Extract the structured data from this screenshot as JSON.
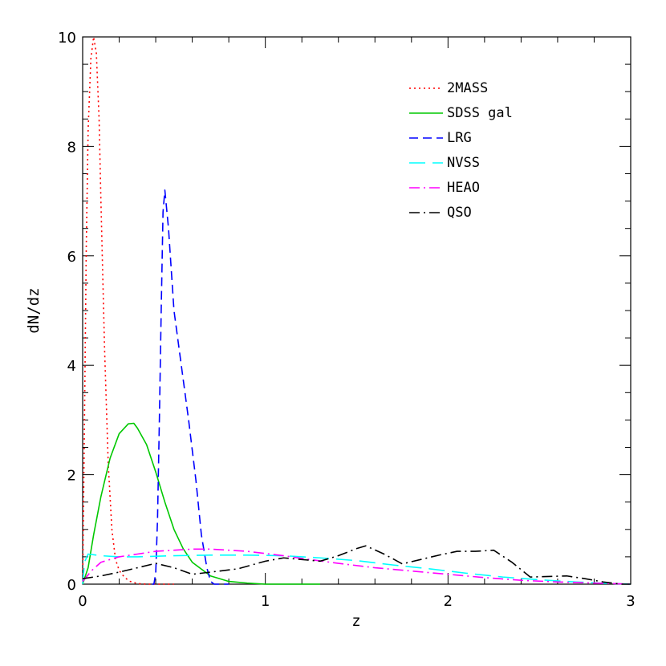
{
  "chart_data": {
    "type": "line",
    "title": "",
    "xlabel": "z",
    "ylabel": "dN/dz",
    "xlim": [
      0,
      3
    ],
    "ylim": [
      0,
      10
    ],
    "grid": false,
    "legend_position": "top-right",
    "x_ticks": [
      "0",
      "1",
      "2",
      "3"
    ],
    "y_ticks": [
      "0",
      "2",
      "4",
      "6",
      "8",
      "10"
    ],
    "series": [
      {
        "name": "2MASS",
        "color": "#ff0000",
        "style": "dotted",
        "points": [
          [
            0,
            0
          ],
          [
            0.01,
            3.0
          ],
          [
            0.02,
            6.2
          ],
          [
            0.03,
            8.3
          ],
          [
            0.045,
            9.6
          ],
          [
            0.06,
            10.0
          ],
          [
            0.075,
            9.7
          ],
          [
            0.09,
            8.5
          ],
          [
            0.1,
            7.0
          ],
          [
            0.12,
            4.3
          ],
          [
            0.14,
            2.2
          ],
          [
            0.16,
            1.0
          ],
          [
            0.18,
            0.45
          ],
          [
            0.2,
            0.25
          ],
          [
            0.23,
            0.12
          ],
          [
            0.26,
            0.05
          ],
          [
            0.3,
            0.01
          ],
          [
            0.35,
            0.0
          ],
          [
            0.5,
            0.0
          ]
        ]
      },
      {
        "name": "SDSS gal",
        "color": "#00c800",
        "style": "solid",
        "points": [
          [
            0,
            0
          ],
          [
            0.03,
            0.3
          ],
          [
            0.06,
            0.9
          ],
          [
            0.1,
            1.6
          ],
          [
            0.15,
            2.3
          ],
          [
            0.2,
            2.75
          ],
          [
            0.25,
            2.93
          ],
          [
            0.28,
            2.94
          ],
          [
            0.3,
            2.85
          ],
          [
            0.35,
            2.55
          ],
          [
            0.4,
            2.05
          ],
          [
            0.45,
            1.5
          ],
          [
            0.5,
            1.0
          ],
          [
            0.55,
            0.65
          ],
          [
            0.6,
            0.4
          ],
          [
            0.7,
            0.15
          ],
          [
            0.8,
            0.05
          ],
          [
            0.9,
            0.02
          ],
          [
            1.0,
            0.0
          ],
          [
            1.2,
            0.0
          ],
          [
            1.3,
            0.0
          ]
        ]
      },
      {
        "name": "LRG",
        "color": "#0000ff",
        "style": "dashed",
        "points": [
          [
            0.38,
            0.0
          ],
          [
            0.39,
            0.0
          ],
          [
            0.4,
            0.2
          ],
          [
            0.41,
            1.2
          ],
          [
            0.42,
            3.0
          ],
          [
            0.43,
            5.0
          ],
          [
            0.44,
            6.8
          ],
          [
            0.45,
            7.2
          ],
          [
            0.47,
            6.5
          ],
          [
            0.5,
            5.0
          ],
          [
            0.54,
            4.0
          ],
          [
            0.58,
            3.0
          ],
          [
            0.62,
            1.9
          ],
          [
            0.65,
            0.9
          ],
          [
            0.68,
            0.3
          ],
          [
            0.7,
            0.05
          ],
          [
            0.72,
            0.0
          ],
          [
            0.8,
            0.0
          ]
        ]
      },
      {
        "name": "NVSS",
        "color": "#00ffff",
        "style": "long-dash",
        "points": [
          [
            0,
            0.0
          ],
          [
            0.01,
            0.4
          ],
          [
            0.03,
            0.55
          ],
          [
            0.1,
            0.52
          ],
          [
            0.2,
            0.5
          ],
          [
            0.3,
            0.5
          ],
          [
            0.5,
            0.52
          ],
          [
            0.7,
            0.53
          ],
          [
            0.9,
            0.53
          ],
          [
            1.1,
            0.52
          ],
          [
            1.3,
            0.48
          ],
          [
            1.5,
            0.43
          ],
          [
            1.7,
            0.35
          ],
          [
            1.9,
            0.28
          ],
          [
            2.1,
            0.2
          ],
          [
            2.3,
            0.13
          ],
          [
            2.5,
            0.08
          ],
          [
            2.7,
            0.04
          ],
          [
            2.9,
            0.01
          ],
          [
            3.0,
            0.0
          ]
        ]
      },
      {
        "name": "HEAO",
        "color": "#ff00ff",
        "style": "dash-dot",
        "points": [
          [
            0,
            0.05
          ],
          [
            0.05,
            0.25
          ],
          [
            0.1,
            0.4
          ],
          [
            0.2,
            0.5
          ],
          [
            0.3,
            0.55
          ],
          [
            0.4,
            0.6
          ],
          [
            0.5,
            0.62
          ],
          [
            0.6,
            0.64
          ],
          [
            0.7,
            0.64
          ],
          [
            0.8,
            0.62
          ],
          [
            0.9,
            0.6
          ],
          [
            1.0,
            0.56
          ],
          [
            1.1,
            0.52
          ],
          [
            1.2,
            0.47
          ],
          [
            1.4,
            0.38
          ],
          [
            1.6,
            0.3
          ],
          [
            1.8,
            0.24
          ],
          [
            2.0,
            0.18
          ],
          [
            2.2,
            0.12
          ],
          [
            2.4,
            0.07
          ],
          [
            2.6,
            0.04
          ],
          [
            2.8,
            0.02
          ],
          [
            3.0,
            0.0
          ]
        ]
      },
      {
        "name": "QSO",
        "color": "#000000",
        "style": "dash-dot",
        "points": [
          [
            0,
            0.1
          ],
          [
            0.1,
            0.15
          ],
          [
            0.2,
            0.22
          ],
          [
            0.3,
            0.3
          ],
          [
            0.4,
            0.38
          ],
          [
            0.5,
            0.3
          ],
          [
            0.6,
            0.18
          ],
          [
            0.7,
            0.22
          ],
          [
            0.85,
            0.28
          ],
          [
            1.0,
            0.42
          ],
          [
            1.1,
            0.48
          ],
          [
            1.2,
            0.45
          ],
          [
            1.3,
            0.42
          ],
          [
            1.4,
            0.52
          ],
          [
            1.5,
            0.65
          ],
          [
            1.55,
            0.7
          ],
          [
            1.65,
            0.55
          ],
          [
            1.75,
            0.37
          ],
          [
            1.85,
            0.45
          ],
          [
            1.95,
            0.53
          ],
          [
            2.05,
            0.6
          ],
          [
            2.15,
            0.6
          ],
          [
            2.25,
            0.62
          ],
          [
            2.35,
            0.4
          ],
          [
            2.45,
            0.13
          ],
          [
            2.55,
            0.14
          ],
          [
            2.65,
            0.15
          ],
          [
            2.75,
            0.1
          ],
          [
            2.85,
            0.04
          ],
          [
            2.95,
            0.0
          ],
          [
            3.0,
            0.0
          ]
        ]
      }
    ]
  }
}
